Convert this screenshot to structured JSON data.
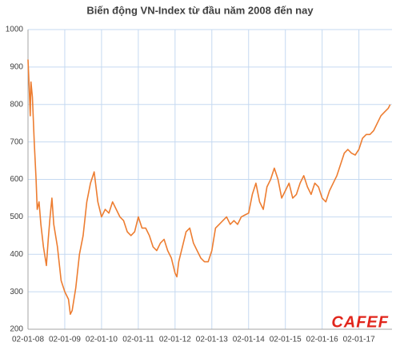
{
  "chart_data": {
    "type": "line",
    "title": "Biến động VN-Index từ đầu năm 2008 đến nay",
    "watermark": "CAFEF",
    "x": [
      2008.0,
      2008.03,
      2008.06,
      2008.08,
      2008.12,
      2008.17,
      2008.22,
      2008.25,
      2008.3,
      2008.35,
      2008.42,
      2008.5,
      2008.55,
      2008.6,
      2008.65,
      2008.7,
      2008.8,
      2008.9,
      2009.0,
      2009.1,
      2009.15,
      2009.2,
      2009.3,
      2009.4,
      2009.5,
      2009.6,
      2009.7,
      2009.8,
      2009.9,
      2010.0,
      2010.1,
      2010.2,
      2010.3,
      2010.4,
      2010.5,
      2010.6,
      2010.7,
      2010.8,
      2010.9,
      2011.0,
      2011.1,
      2011.2,
      2011.3,
      2011.4,
      2011.5,
      2011.6,
      2011.7,
      2011.8,
      2011.9,
      2012.0,
      2012.05,
      2012.1,
      2012.2,
      2012.3,
      2012.4,
      2012.5,
      2012.6,
      2012.7,
      2012.8,
      2012.9,
      2013.0,
      2013.1,
      2013.2,
      2013.3,
      2013.4,
      2013.5,
      2013.6,
      2013.7,
      2013.8,
      2013.9,
      2014.0,
      2014.1,
      2014.2,
      2014.3,
      2014.4,
      2014.5,
      2014.6,
      2014.7,
      2014.8,
      2014.9,
      2015.0,
      2015.1,
      2015.2,
      2015.3,
      2015.4,
      2015.5,
      2015.6,
      2015.7,
      2015.8,
      2015.9,
      2016.0,
      2016.1,
      2016.2,
      2016.3,
      2016.4,
      2016.5,
      2016.6,
      2016.7,
      2016.8,
      2016.9,
      2017.0,
      2017.1,
      2017.2,
      2017.3,
      2017.4,
      2017.5,
      2017.6,
      2017.7,
      2017.8,
      2017.85
    ],
    "series": [
      {
        "name": "VN-Index",
        "color": "#ed7d31",
        "values": [
          920,
          850,
          770,
          860,
          820,
          700,
          600,
          520,
          540,
          480,
          420,
          370,
          440,
          500,
          550,
          480,
          420,
          330,
          300,
          280,
          240,
          250,
          310,
          400,
          450,
          540,
          590,
          620,
          540,
          500,
          520,
          510,
          540,
          520,
          500,
          490,
          460,
          450,
          460,
          500,
          470,
          470,
          450,
          420,
          410,
          430,
          440,
          410,
          390,
          350,
          340,
          380,
          420,
          460,
          470,
          430,
          410,
          390,
          380,
          380,
          410,
          470,
          480,
          490,
          500,
          480,
          490,
          480,
          500,
          505,
          510,
          560,
          590,
          540,
          520,
          580,
          600,
          630,
          600,
          550,
          570,
          590,
          550,
          560,
          590,
          610,
          580,
          560,
          590,
          580,
          550,
          540,
          570,
          590,
          610,
          640,
          670,
          680,
          670,
          665,
          680,
          710,
          720,
          720,
          730,
          750,
          770,
          780,
          790,
          800
        ]
      }
    ],
    "xlim": [
      2008,
      2017.9
    ],
    "xticks": [
      {
        "value": 2008,
        "label": "02-01-08"
      },
      {
        "value": 2009,
        "label": "02-01-09"
      },
      {
        "value": 2010,
        "label": "02-01-10"
      },
      {
        "value": 2011,
        "label": "02-01-11"
      },
      {
        "value": 2012,
        "label": "02-01-12"
      },
      {
        "value": 2013,
        "label": "02-01-13"
      },
      {
        "value": 2014,
        "label": "02-01-14"
      },
      {
        "value": 2015,
        "label": "02-01-15"
      },
      {
        "value": 2016,
        "label": "02-01-16"
      },
      {
        "value": 2017,
        "label": "02-01-17"
      }
    ],
    "ylim": [
      200,
      1000
    ],
    "yticks": [
      200,
      300,
      400,
      500,
      600,
      700,
      800,
      900,
      1000
    ],
    "grid": true
  }
}
